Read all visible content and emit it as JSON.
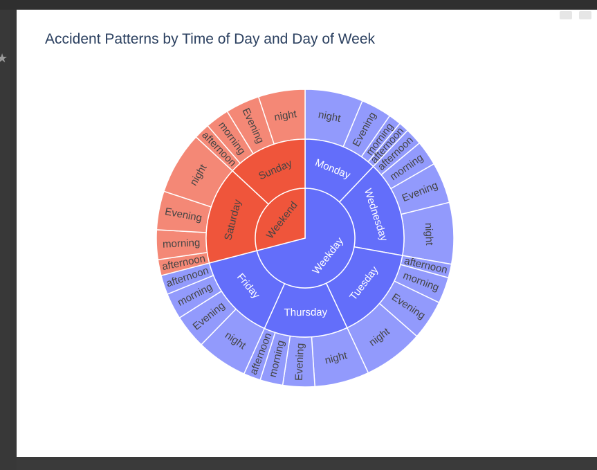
{
  "modebar": {
    "icons": [
      "camera-icon",
      "bar-chart-icon"
    ]
  },
  "chart_data": {
    "type": "sunburst",
    "title": "Accident Patterns by Time of Day and Day of Week",
    "colors": {
      "Weekday": "#636efa",
      "Weekend": "#ef553b"
    },
    "root": [
      {
        "name": "Weekday",
        "children": [
          {
            "name": "Monday",
            "children": [
              {
                "name": "night",
                "value": 51
              },
              {
                "name": "Evening",
                "value": 27
              },
              {
                "name": "morning",
                "value": 11
              },
              {
                "name": "afternoon",
                "value": 9
              }
            ]
          },
          {
            "name": "Wednesday",
            "children": [
              {
                "name": "afternoon",
                "value": 15
              },
              {
                "name": "morning",
                "value": 22
              },
              {
                "name": "Evening",
                "value": 36
              },
              {
                "name": "night",
                "value": 54
              }
            ]
          },
          {
            "name": "Tuesday",
            "children": [
              {
                "name": "afternoon",
                "value": 12
              },
              {
                "name": "morning",
                "value": 23
              },
              {
                "name": "Evening",
                "value": 35
              },
              {
                "name": "night",
                "value": 53
              }
            ]
          },
          {
            "name": "Thursday",
            "children": [
              {
                "name": "night",
                "value": 48
              },
              {
                "name": "Evening",
                "value": 28
              },
              {
                "name": "morning",
                "value": 20
              },
              {
                "name": "afternoon",
                "value": 15
              }
            ]
          },
          {
            "name": "Friday",
            "children": [
              {
                "name": "night",
                "value": 45
              },
              {
                "name": "Evening",
                "value": 30
              },
              {
                "name": "morning",
                "value": 23
              },
              {
                "name": "afternoon",
                "value": 17
              }
            ]
          }
        ]
      },
      {
        "name": "Weekend",
        "children": [
          {
            "name": "Saturday",
            "children": [
              {
                "name": "afternoon",
                "value": 14
              },
              {
                "name": "morning",
                "value": 26
              },
              {
                "name": "Evening",
                "value": 34
              },
              {
                "name": "night",
                "value": 55
              }
            ]
          },
          {
            "name": "Sunday",
            "children": [
              {
                "name": "afternoon",
                "value": 14
              },
              {
                "name": "morning",
                "value": 21
              },
              {
                "name": "Evening",
                "value": 30
              },
              {
                "name": "night",
                "value": 41
              }
            ]
          }
        ]
      }
    ]
  }
}
